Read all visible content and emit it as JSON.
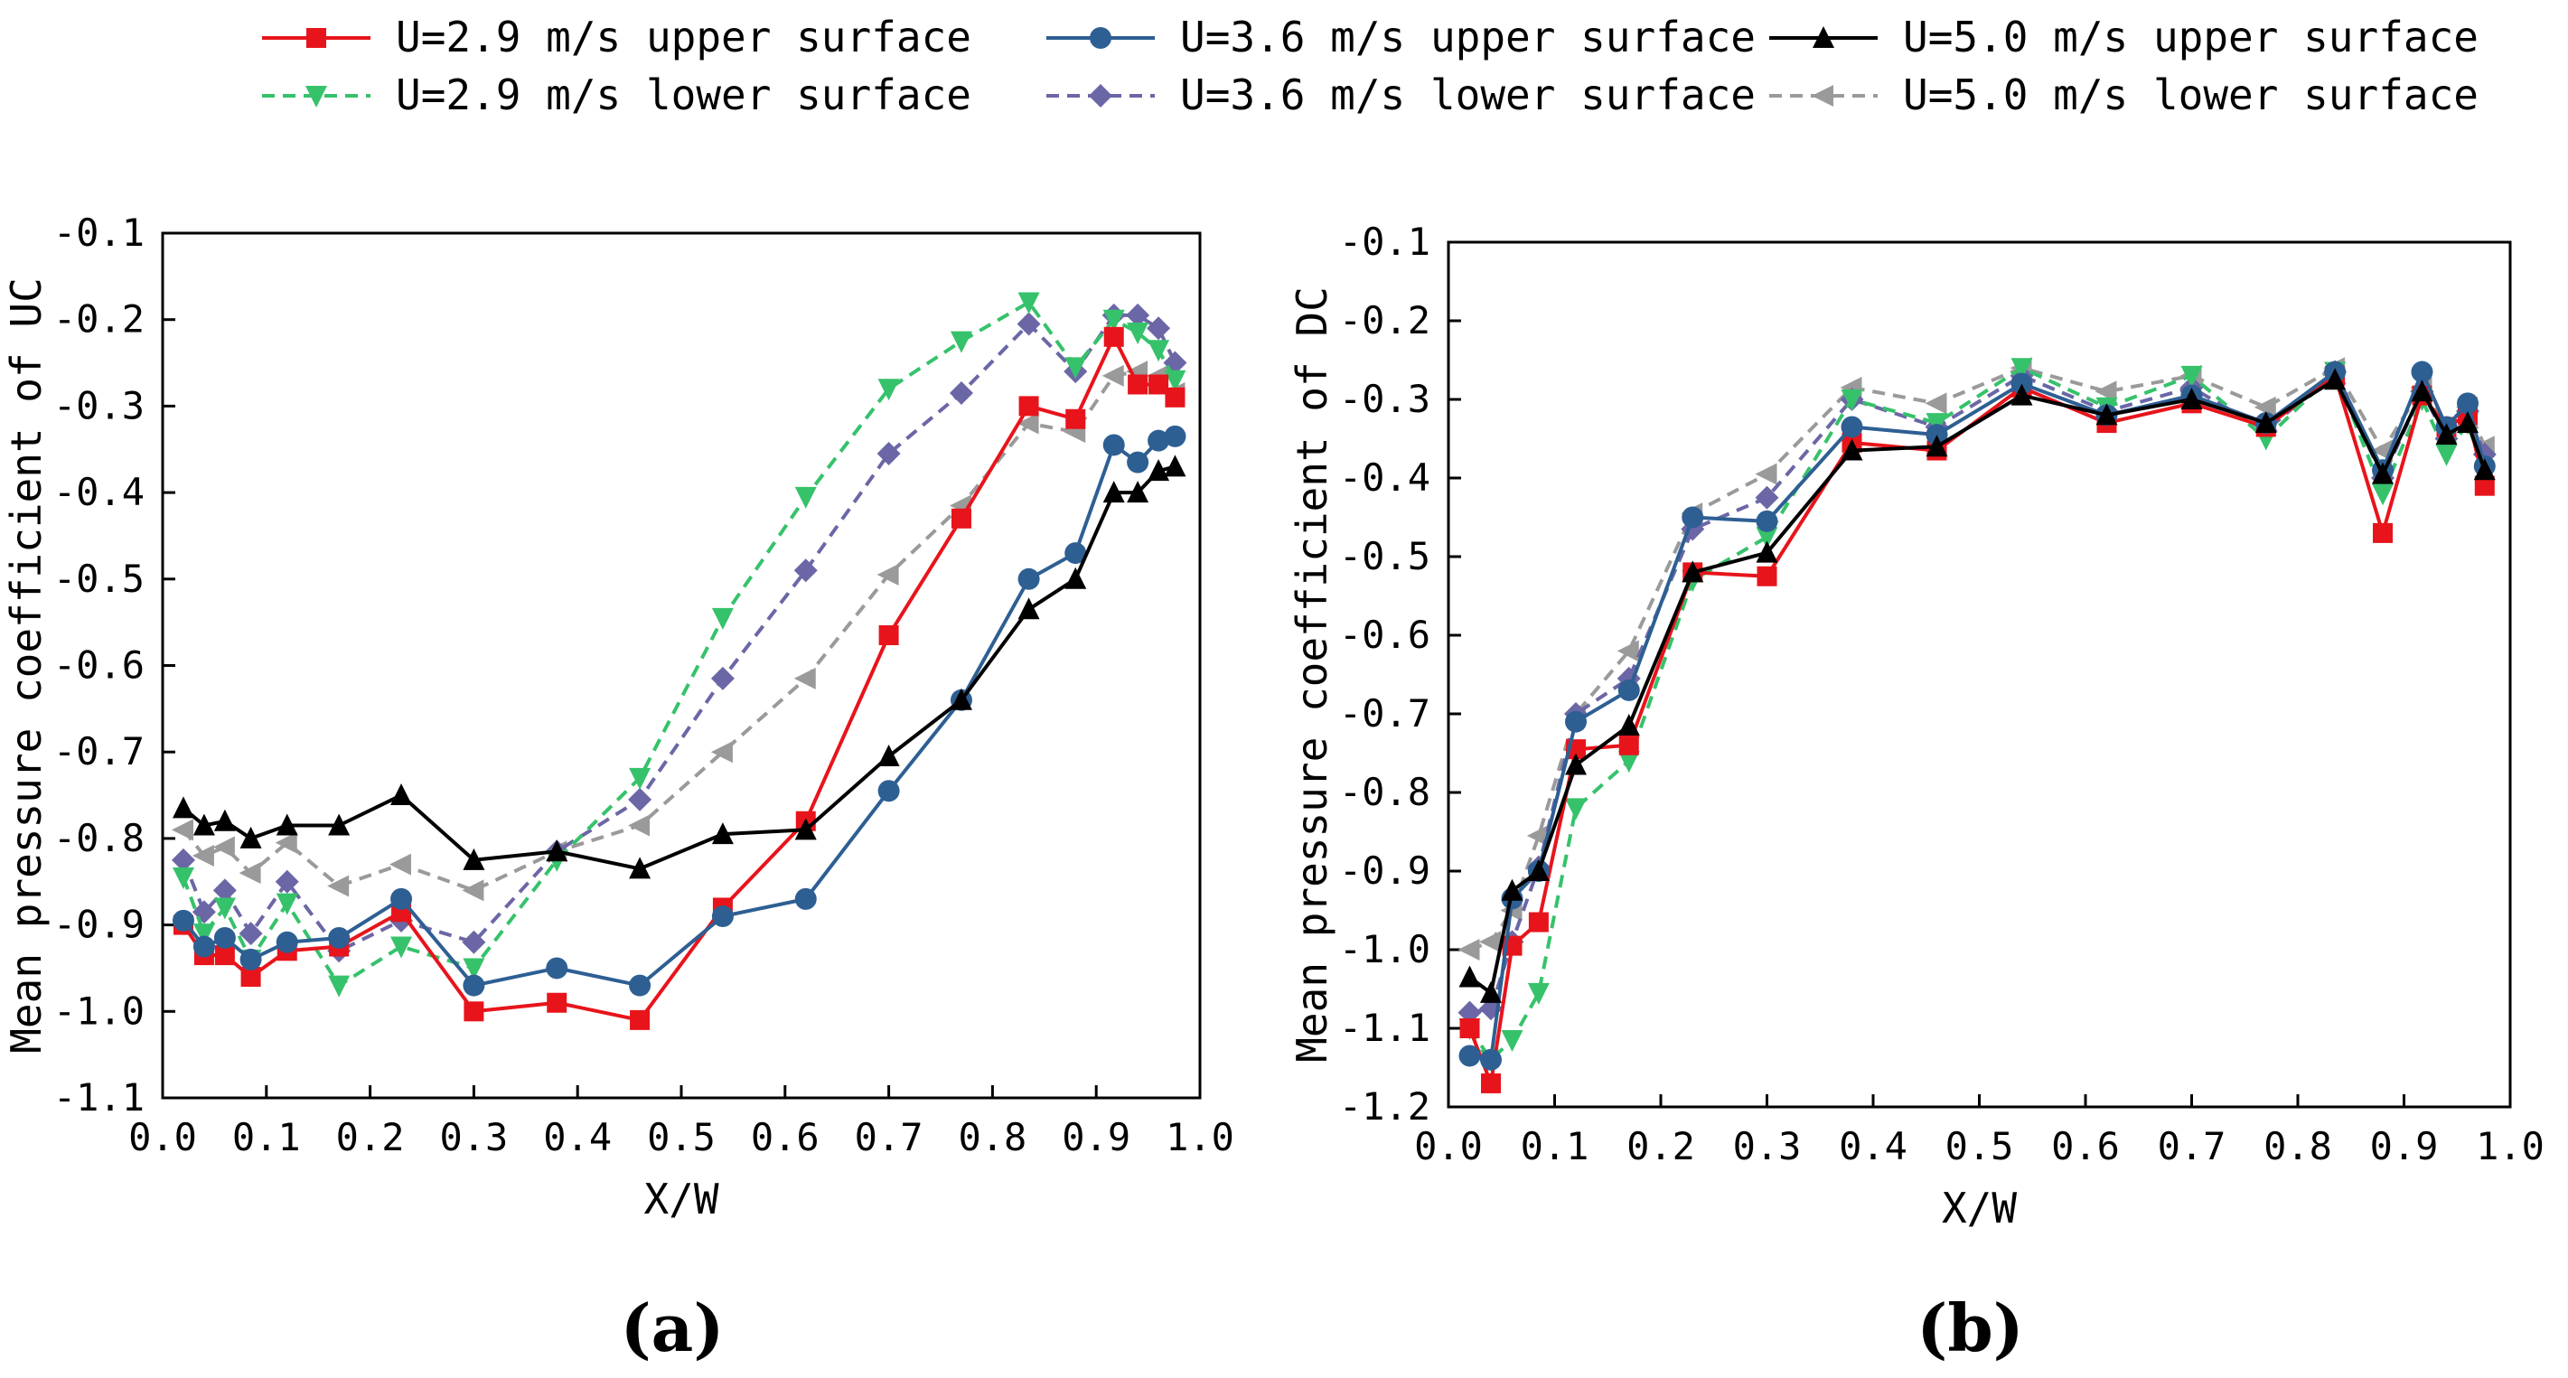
{
  "legend": {
    "items": [
      {
        "label": "U=2.9 m/s upper surface",
        "series_index": 0
      },
      {
        "label": "U=3.6 m/s upper surface",
        "series_index": 1
      },
      {
        "label": "U=5.0 m/s upper surface",
        "series_index": 2
      },
      {
        "label": "U=2.9 m/s lower surface",
        "series_index": 3
      },
      {
        "label": "U=3.6 m/s lower surface",
        "series_index": 4
      },
      {
        "label": "U=5.0 m/s lower surface",
        "series_index": 5
      }
    ]
  },
  "series_style": [
    {
      "name": "U=2.9 m/s upper surface",
      "color": "#e8141b",
      "marker": "square",
      "dash": "solid"
    },
    {
      "name": "U=3.6 m/s upper surface",
      "color": "#2e5f93",
      "marker": "circle",
      "dash": "solid"
    },
    {
      "name": "U=5.0 m/s upper surface",
      "color": "#000000",
      "marker": "triangle-up",
      "dash": "solid"
    },
    {
      "name": "U=2.9 m/s lower surface",
      "color": "#36c26b",
      "marker": "triangle-down",
      "dash": "dashed"
    },
    {
      "name": "U=3.6 m/s lower surface",
      "color": "#6b67a6",
      "marker": "diamond",
      "dash": "dashed"
    },
    {
      "name": "U=5.0 m/s lower surface",
      "color": "#9a9a9a",
      "marker": "triangle-left",
      "dash": "dashed"
    }
  ],
  "chart_data": [
    {
      "panel_label": "(a)",
      "type": "line",
      "xlabel": "X/W",
      "ylabel": "Mean pressure coefficient of UC",
      "xlim": [
        0.0,
        1.0
      ],
      "ylim": [
        -1.1,
        -0.1
      ],
      "y_inverted": true,
      "xticks": [
        "0.0",
        "0.1",
        "0.2",
        "0.3",
        "0.4",
        "0.5",
        "0.6",
        "0.7",
        "0.8",
        "0.9",
        "1.0"
      ],
      "yticks": [
        "-0.1",
        "-0.2",
        "-0.3",
        "-0.4",
        "-0.5",
        "-0.6",
        "-0.7",
        "-0.8",
        "-0.9",
        "-1.0",
        "-1.1"
      ],
      "series": [
        {
          "name": "U=2.9 m/s upper surface",
          "x": [
            0.02,
            0.04,
            0.06,
            0.085,
            0.12,
            0.17,
            0.23,
            0.3,
            0.38,
            0.46,
            0.54,
            0.62,
            0.7,
            0.77,
            0.835,
            0.88,
            0.917,
            0.94,
            0.96,
            0.976
          ],
          "y": [
            -0.9,
            -0.935,
            -0.935,
            -0.96,
            -0.93,
            -0.925,
            -0.885,
            -1.0,
            -0.99,
            -1.01,
            -0.88,
            -0.78,
            -0.565,
            -0.43,
            -0.3,
            -0.315,
            -0.22,
            -0.275,
            -0.275,
            -0.29
          ]
        },
        {
          "name": "U=3.6 m/s upper surface",
          "x": [
            0.02,
            0.04,
            0.06,
            0.085,
            0.12,
            0.17,
            0.23,
            0.3,
            0.38,
            0.46,
            0.54,
            0.62,
            0.7,
            0.77,
            0.835,
            0.88,
            0.917,
            0.94,
            0.96,
            0.976
          ],
          "y": [
            -0.895,
            -0.925,
            -0.915,
            -0.94,
            -0.92,
            -0.915,
            -0.87,
            -0.97,
            -0.95,
            -0.97,
            -0.89,
            -0.87,
            -0.745,
            -0.64,
            -0.5,
            -0.47,
            -0.345,
            -0.365,
            -0.34,
            -0.335
          ]
        },
        {
          "name": "U=5.0 m/s upper surface",
          "x": [
            0.02,
            0.04,
            0.06,
            0.085,
            0.12,
            0.17,
            0.23,
            0.3,
            0.38,
            0.46,
            0.54,
            0.62,
            0.7,
            0.77,
            0.835,
            0.88,
            0.917,
            0.94,
            0.96,
            0.976
          ],
          "y": [
            -0.765,
            -0.785,
            -0.78,
            -0.8,
            -0.785,
            -0.785,
            -0.75,
            -0.825,
            -0.815,
            -0.835,
            -0.795,
            -0.79,
            -0.705,
            -0.64,
            -0.535,
            -0.5,
            -0.4,
            -0.4,
            -0.375,
            -0.37
          ]
        },
        {
          "name": "U=2.9 m/s lower surface",
          "x": [
            0.02,
            0.04,
            0.06,
            0.085,
            0.12,
            0.17,
            0.23,
            0.3,
            0.38,
            0.46,
            0.54,
            0.62,
            0.7,
            0.77,
            0.835,
            0.88,
            0.917,
            0.94,
            0.96,
            0.976
          ],
          "y": [
            -0.845,
            -0.91,
            -0.88,
            -0.94,
            -0.875,
            -0.97,
            -0.925,
            -0.95,
            -0.825,
            -0.73,
            -0.545,
            -0.405,
            -0.28,
            -0.225,
            -0.18,
            -0.255,
            -0.2,
            -0.215,
            -0.235,
            -0.27
          ]
        },
        {
          "name": "U=3.6 m/s lower surface",
          "x": [
            0.02,
            0.04,
            0.06,
            0.085,
            0.12,
            0.17,
            0.23,
            0.3,
            0.38,
            0.46,
            0.54,
            0.62,
            0.7,
            0.77,
            0.835,
            0.88,
            0.917,
            0.94,
            0.96,
            0.976
          ],
          "y": [
            -0.825,
            -0.885,
            -0.86,
            -0.91,
            -0.85,
            -0.93,
            -0.895,
            -0.92,
            -0.815,
            -0.755,
            -0.615,
            -0.49,
            -0.355,
            -0.285,
            -0.205,
            -0.26,
            -0.195,
            -0.195,
            -0.21,
            -0.25
          ]
        },
        {
          "name": "U=5.0 m/s lower surface",
          "x": [
            0.02,
            0.04,
            0.06,
            0.085,
            0.12,
            0.17,
            0.23,
            0.3,
            0.38,
            0.46,
            0.54,
            0.62,
            0.7,
            0.77,
            0.835,
            0.88,
            0.917,
            0.94,
            0.96,
            0.976
          ],
          "y": [
            -0.79,
            -0.82,
            -0.81,
            -0.84,
            -0.805,
            -0.855,
            -0.83,
            -0.86,
            -0.815,
            -0.785,
            -0.7,
            -0.615,
            -0.495,
            -0.415,
            -0.32,
            -0.33,
            -0.265,
            -0.26,
            -0.265,
            -0.285
          ]
        }
      ]
    },
    {
      "panel_label": "(b)",
      "type": "line",
      "xlabel": "X/W",
      "ylabel": "Mean pressure coefficient of DC",
      "xlim": [
        0.0,
        1.0
      ],
      "ylim": [
        -1.2,
        -0.1
      ],
      "y_inverted": true,
      "xticks": [
        "0.0",
        "0.1",
        "0.2",
        "0.3",
        "0.4",
        "0.5",
        "0.6",
        "0.7",
        "0.8",
        "0.9",
        "1.0"
      ],
      "yticks": [
        "-0.1",
        "-0.2",
        "-0.3",
        "-0.4",
        "-0.5",
        "-0.6",
        "-0.7",
        "-0.8",
        "-0.9",
        "-1.0",
        "-1.1",
        "-1.2"
      ],
      "series": [
        {
          "name": "U=2.9 m/s upper surface",
          "x": [
            0.02,
            0.04,
            0.06,
            0.085,
            0.12,
            0.17,
            0.23,
            0.3,
            0.38,
            0.46,
            0.54,
            0.62,
            0.7,
            0.77,
            0.835,
            0.88,
            0.917,
            0.94,
            0.96,
            0.976
          ],
          "y": [
            -1.1,
            -1.17,
            -0.995,
            -0.965,
            -0.745,
            -0.74,
            -0.52,
            -0.525,
            -0.355,
            -0.365,
            -0.285,
            -0.33,
            -0.305,
            -0.335,
            -0.27,
            -0.47,
            -0.295,
            -0.335,
            -0.32,
            -0.41
          ]
        },
        {
          "name": "U=3.6 m/s upper surface",
          "x": [
            0.02,
            0.04,
            0.06,
            0.085,
            0.12,
            0.17,
            0.23,
            0.3,
            0.38,
            0.46,
            0.54,
            0.62,
            0.7,
            0.77,
            0.835,
            0.88,
            0.917,
            0.94,
            0.96,
            0.976
          ],
          "y": [
            -1.135,
            -1.14,
            -0.935,
            -0.9,
            -0.71,
            -0.67,
            -0.45,
            -0.455,
            -0.335,
            -0.345,
            -0.28,
            -0.32,
            -0.295,
            -0.33,
            -0.265,
            -0.39,
            -0.265,
            -0.335,
            -0.305,
            -0.385
          ]
        },
        {
          "name": "U=5.0 m/s upper surface",
          "x": [
            0.02,
            0.04,
            0.06,
            0.085,
            0.12,
            0.17,
            0.23,
            0.3,
            0.38,
            0.46,
            0.54,
            0.62,
            0.7,
            0.77,
            0.835,
            0.88,
            0.917,
            0.94,
            0.96,
            0.976
          ],
          "y": [
            -1.035,
            -1.055,
            -0.925,
            -0.9,
            -0.765,
            -0.715,
            -0.52,
            -0.495,
            -0.365,
            -0.36,
            -0.295,
            -0.32,
            -0.3,
            -0.33,
            -0.275,
            -0.395,
            -0.29,
            -0.345,
            -0.33,
            -0.39
          ]
        },
        {
          "name": "U=2.9 m/s lower surface",
          "x": [
            0.02,
            0.04,
            0.06,
            0.085,
            0.12,
            0.17,
            0.23,
            0.3,
            0.38,
            0.46,
            0.54,
            0.62,
            0.7,
            0.77,
            0.835,
            0.88,
            0.917,
            0.94,
            0.96,
            0.976
          ],
          "y": [
            -1.1,
            -1.14,
            -1.115,
            -1.055,
            -0.82,
            -0.76,
            -0.53,
            -0.475,
            -0.3,
            -0.33,
            -0.26,
            -0.31,
            -0.27,
            -0.35,
            -0.265,
            -0.42,
            -0.3,
            -0.37,
            -0.33,
            -0.395
          ]
        },
        {
          "name": "U=3.6 m/s lower surface",
          "x": [
            0.02,
            0.04,
            0.06,
            0.085,
            0.12,
            0.17,
            0.23,
            0.3,
            0.38,
            0.46,
            0.54,
            0.62,
            0.7,
            0.77,
            0.835,
            0.88,
            0.917,
            0.94,
            0.96,
            0.976
          ],
          "y": [
            -1.08,
            -1.075,
            -0.99,
            -0.895,
            -0.7,
            -0.655,
            -0.465,
            -0.425,
            -0.3,
            -0.335,
            -0.27,
            -0.315,
            -0.285,
            -0.34,
            -0.265,
            -0.4,
            -0.29,
            -0.35,
            -0.315,
            -0.37
          ]
        },
        {
          "name": "U=5.0 m/s lower surface",
          "x": [
            0.02,
            0.04,
            0.06,
            0.085,
            0.12,
            0.17,
            0.23,
            0.3,
            0.38,
            0.46,
            0.54,
            0.62,
            0.7,
            0.77,
            0.835,
            0.88,
            0.917,
            0.94,
            0.96,
            0.976
          ],
          "y": [
            -1.0,
            -0.99,
            -0.95,
            -0.855,
            -0.7,
            -0.62,
            -0.445,
            -0.395,
            -0.285,
            -0.305,
            -0.26,
            -0.29,
            -0.27,
            -0.31,
            -0.26,
            -0.365,
            -0.285,
            -0.335,
            -0.31,
            -0.36
          ]
        }
      ]
    }
  ]
}
